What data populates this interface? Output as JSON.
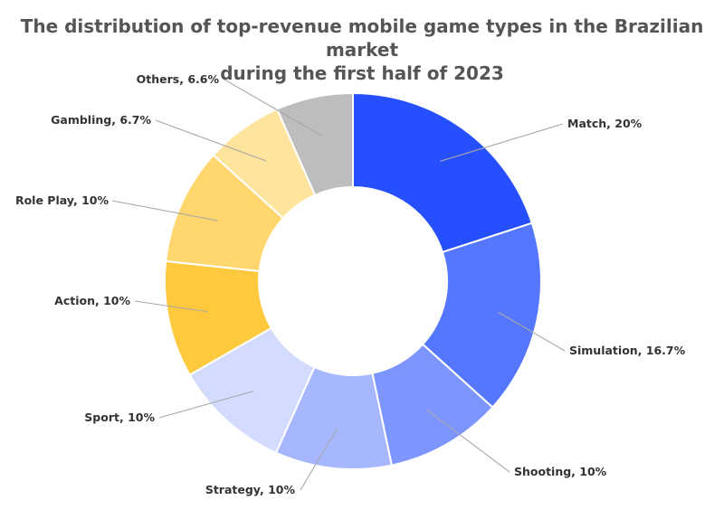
{
  "chart_data": {
    "type": "pie",
    "variant": "donut",
    "title_line1": "The distribution of top-revenue mobile game types in the Brazilian market",
    "title_line2": "during the first half of 2023",
    "slices": [
      {
        "name": "Match",
        "value": 20,
        "label": "Match, 20%",
        "color": "#2650ff"
      },
      {
        "name": "Simulation",
        "value": 16.7,
        "label": "Simulation, 16.7%",
        "color": "#5577ff"
      },
      {
        "name": "Shooting",
        "value": 10,
        "label": "Shooting, 10%",
        "color": "#7d95ff"
      },
      {
        "name": "Strategy",
        "value": 10,
        "label": "Strategy, 10%",
        "color": "#a7b7ff"
      },
      {
        "name": "Sport",
        "value": 10,
        "label": "Sport, 10%",
        "color": "#d3dbff"
      },
      {
        "name": "Action",
        "value": 10,
        "label": "Action, 10%",
        "color": "#ffc93d"
      },
      {
        "name": "Role Play",
        "value": 10,
        "label": "Role Play, 10%",
        "color": "#ffd76e"
      },
      {
        "name": "Gambling",
        "value": 6.7,
        "label": "Gambling, 6.7%",
        "color": "#ffe49e"
      },
      {
        "name": "Others",
        "value": 6.6,
        "label": "Others, 6.6%",
        "color": "#bdbdbd"
      }
    ]
  }
}
